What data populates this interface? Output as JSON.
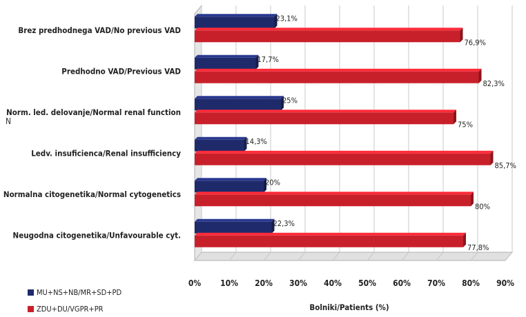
{
  "chart_data": {
    "type": "bar",
    "orientation": "horizontal",
    "categories": [
      "Brez predhodnega  VAD/No previous VAD",
      "Predhodno VAD/Previous VAD",
      "Norm. led. delovanje/Normal renal function",
      "Ledv. insuficienca/Renal insufficiency",
      "Normalna citogenetika/Normal cytogenetics",
      "Neugodna citogenetika/Unfavourable cyt."
    ],
    "series": [
      {
        "name": "MU+NS+NB/MR+SD+PD",
        "color": "#1f2a6b",
        "values": [
          23.1,
          17.7,
          25,
          14.3,
          20,
          22.3
        ],
        "labels": [
          "23,1%",
          "17,7%",
          "25%",
          "14,3%",
          "20%",
          "22,3%"
        ]
      },
      {
        "name": "ZDU+DU/VGPR+PR",
        "color": "#c8202a",
        "values": [
          76.9,
          82.3,
          75,
          85.7,
          80,
          77.8
        ],
        "labels": [
          "76,9%",
          "82,3%",
          "75%",
          "85,7%",
          "80%",
          "77,8%"
        ]
      }
    ],
    "xlim": [
      0,
      90
    ],
    "xticks": [
      "0%",
      "10%",
      "20%",
      "30%",
      "40%",
      "50%",
      "60%",
      "70%",
      "80%",
      "90%"
    ],
    "xlabel": "Bolniki/Patients (%)",
    "ylabel_fragment": "N",
    "grid": true,
    "legend_position": "bottom-left"
  }
}
